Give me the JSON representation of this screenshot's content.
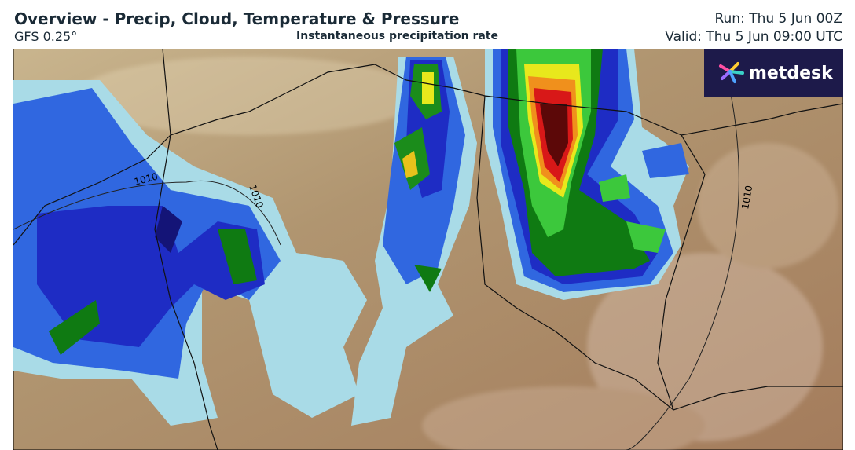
{
  "header": {
    "title": "Overview - Precip, Cloud, Temperature & Pressure",
    "model": "GFS 0.25°",
    "subtitle": "Instantaneous precipitation rate",
    "run": "Run: Thu 5 Jun 00Z",
    "valid": "Valid: Thu 5 Jun 09:00 UTC"
  },
  "map": {
    "isobar_labels": [
      "1010",
      "1010",
      "1010"
    ]
  },
  "logo": {
    "text": "metdesk"
  }
}
